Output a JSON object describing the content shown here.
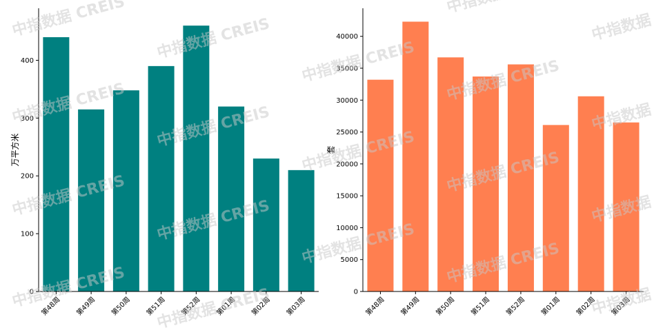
{
  "watermark": "中指数据 CREIS",
  "chart_data": [
    {
      "type": "bar",
      "categories": [
        "第48周",
        "第49周",
        "第50周",
        "第51周",
        "第52周",
        "第01周",
        "第02周",
        "第03周"
      ],
      "values": [
        440,
        315,
        348,
        390,
        460,
        320,
        230,
        210
      ],
      "ylabel": "万平方米",
      "ylim": [
        0,
        490
      ],
      "yticks": [
        0,
        100,
        200,
        300,
        400
      ],
      "color": "#008080",
      "grid": false
    },
    {
      "type": "bar",
      "categories": [
        "第48周",
        "第49周",
        "第50周",
        "第51周",
        "第52周",
        "第01周",
        "第02周",
        "第03周"
      ],
      "values": [
        33200,
        42300,
        36700,
        33700,
        35600,
        26100,
        30600,
        26500
      ],
      "ylabel": "套",
      "ylim": [
        0,
        44400
      ],
      "yticks": [
        0,
        5000,
        10000,
        15000,
        20000,
        25000,
        30000,
        35000,
        40000
      ],
      "color": "#FF7F50",
      "grid": false
    }
  ]
}
